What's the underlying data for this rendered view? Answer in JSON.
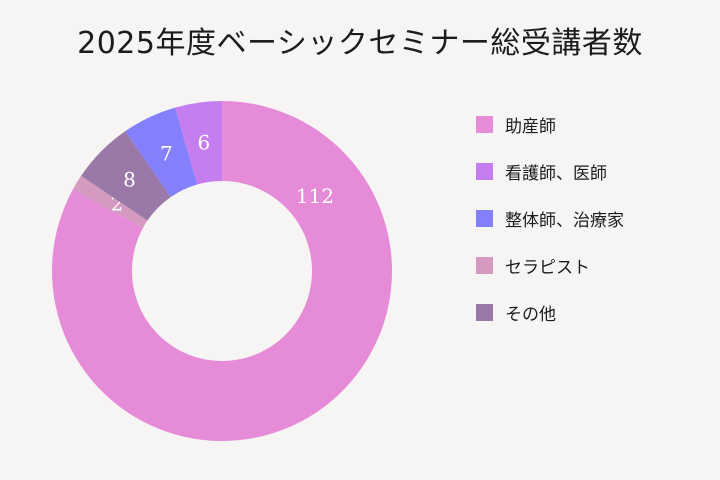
{
  "chart_data": {
    "type": "pie",
    "title": "2025年度ベーシックセミナー総受講者数",
    "donut": true,
    "categories": [
      "助産師",
      "看護師、医師",
      "整体師、治療家",
      "セラピスト",
      "その他"
    ],
    "values": [
      112,
      6,
      7,
      2,
      8
    ],
    "colors": [
      "#e58bd8",
      "#c57eef",
      "#8480fb",
      "#d49ac0",
      "#9a79a9"
    ],
    "legend": "right",
    "data_labels": true
  }
}
